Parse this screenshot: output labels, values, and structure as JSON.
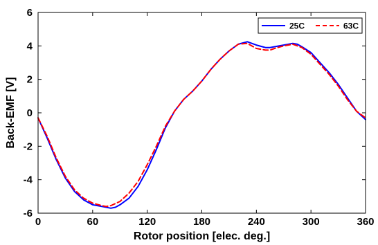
{
  "chart_data": {
    "type": "line",
    "title": "",
    "xlabel": "Rotor position [elec. deg.]",
    "ylabel": "Back-EMF [V]",
    "xlim": [
      0,
      360
    ],
    "ylim": [
      -6,
      6
    ],
    "xticks": [
      0,
      60,
      120,
      180,
      240,
      300,
      360
    ],
    "yticks": [
      -6,
      -4,
      -2,
      0,
      2,
      4,
      6
    ],
    "grid": false,
    "legend_position": "top-right",
    "series": [
      {
        "name": "25C",
        "color": "#0000ff",
        "dash": "solid",
        "x": [
          0,
          10,
          20,
          30,
          40,
          50,
          60,
          70,
          80,
          85,
          90,
          100,
          110,
          120,
          130,
          140,
          150,
          160,
          170,
          180,
          190,
          200,
          210,
          220,
          230,
          240,
          250,
          255,
          260,
          270,
          280,
          285,
          290,
          300,
          310,
          320,
          330,
          340,
          350,
          360
        ],
        "y": [
          -0.3,
          -1.5,
          -2.8,
          -3.9,
          -4.7,
          -5.2,
          -5.5,
          -5.6,
          -5.7,
          -5.65,
          -5.5,
          -5.1,
          -4.4,
          -3.4,
          -2.2,
          -0.9,
          0.1,
          0.8,
          1.3,
          1.9,
          2.6,
          3.2,
          3.7,
          4.1,
          4.25,
          4.05,
          3.9,
          3.9,
          3.95,
          4.05,
          4.15,
          4.1,
          3.95,
          3.6,
          3.0,
          2.4,
          1.7,
          0.9,
          0.1,
          -0.4
        ]
      },
      {
        "name": "63C",
        "color": "#ff0000",
        "dash": "dashed",
        "x": [
          0,
          10,
          20,
          30,
          40,
          50,
          60,
          70,
          75,
          80,
          90,
          100,
          110,
          120,
          130,
          140,
          150,
          160,
          170,
          180,
          190,
          200,
          210,
          220,
          230,
          240,
          250,
          255,
          260,
          270,
          280,
          290,
          300,
          310,
          320,
          330,
          340,
          350,
          360
        ],
        "y": [
          -0.3,
          -1.4,
          -2.7,
          -3.8,
          -4.6,
          -5.1,
          -5.4,
          -5.55,
          -5.6,
          -5.55,
          -5.3,
          -4.8,
          -4.1,
          -3.1,
          -2.0,
          -0.8,
          0.1,
          0.8,
          1.3,
          1.9,
          2.6,
          3.2,
          3.7,
          4.1,
          4.15,
          3.85,
          3.75,
          3.75,
          3.85,
          4.0,
          4.1,
          3.9,
          3.5,
          2.9,
          2.3,
          1.6,
          0.8,
          0.1,
          -0.3
        ]
      }
    ]
  }
}
